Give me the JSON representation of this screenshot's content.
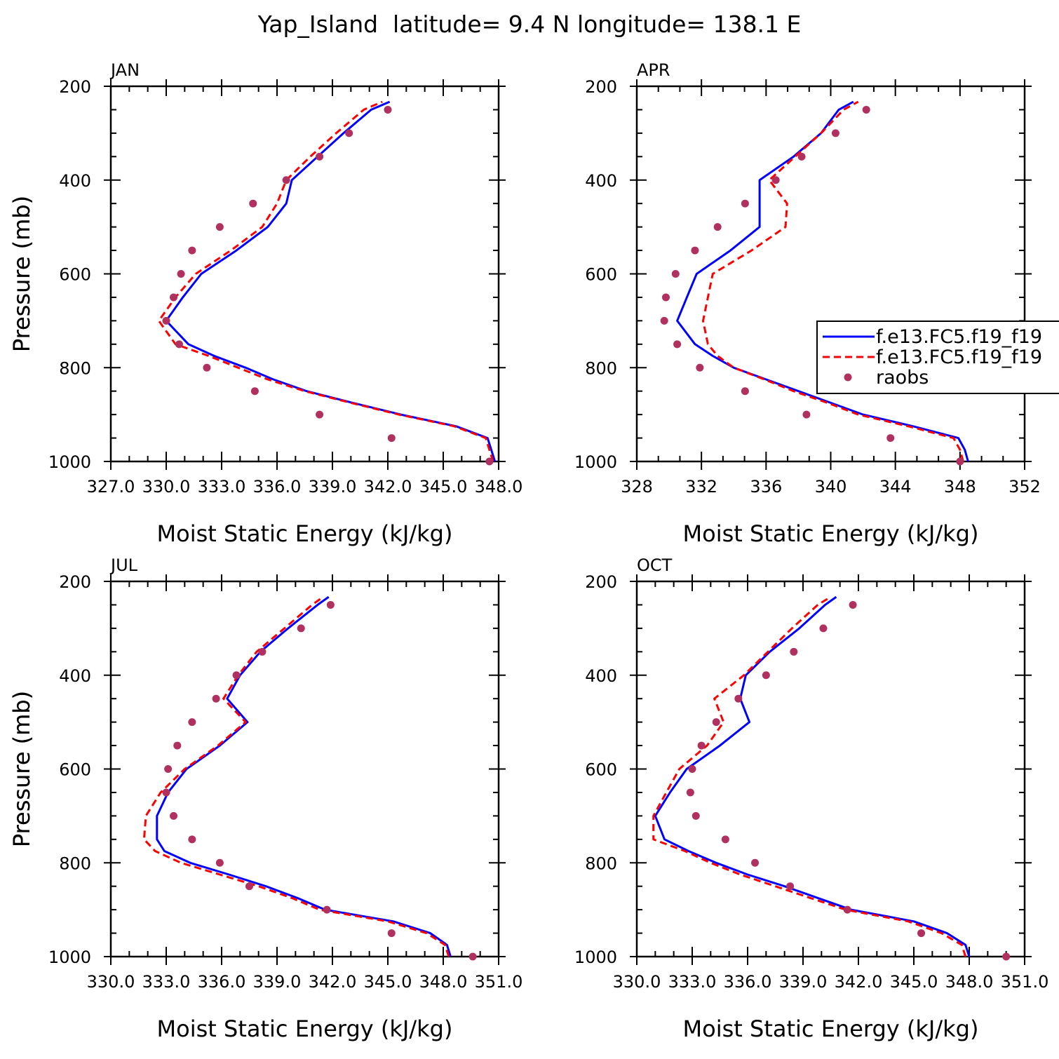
{
  "figure": {
    "title": "Yap_Island  latitude= 9.4 N longitude= 138.1 E",
    "colors": {
      "model1": "#0000ff",
      "model2": "#ff0000",
      "raobs": "#b03060"
    },
    "legend": {
      "entries": [
        {
          "label": "f.e13.FC5.f19_f19",
          "style": "solid-blue-line"
        },
        {
          "label": "f.e13.FC5.f19_f19",
          "style": "dashed-red-line"
        },
        {
          "label": "raobs",
          "style": "purple-dot"
        }
      ]
    }
  },
  "chart_data": [
    {
      "type": "line",
      "panel": "JAN",
      "xlabel": "Moist Static Energy (kJ/kg)",
      "ylabel": "Pressure (mb)",
      "xlim": [
        327.0,
        348.0
      ],
      "xticks": [
        327.0,
        330.0,
        333.0,
        336.0,
        339.0,
        342.0,
        345.0,
        348.0
      ],
      "xtick_labels": [
        "327.0",
        "330.0",
        "333.0",
        "336.0",
        "339.0",
        "342.0",
        "345.0",
        "348.0"
      ],
      "ylim": [
        1000,
        200
      ],
      "yticks": [
        200,
        400,
        600,
        800,
        1000
      ],
      "levels": [
        1000,
        975,
        950,
        925,
        900,
        875,
        850,
        825,
        800,
        775,
        750,
        700,
        650,
        600,
        550,
        500,
        450,
        400,
        350,
        300,
        250,
        233
      ],
      "series": [
        {
          "name": "f.e13.FC5.f19_f19",
          "x": [
            347.8,
            347.6,
            347.4,
            345.7,
            342.7,
            340.1,
            337.6,
            335.8,
            334.3,
            332.6,
            331.2,
            330.0,
            330.9,
            331.9,
            333.8,
            335.5,
            336.5,
            336.8,
            338.2,
            339.6,
            341.1,
            342.1
          ]
        },
        {
          "name": "f.e13.FC5.f19_f19",
          "x": [
            347.7,
            347.5,
            347.3,
            345.6,
            342.6,
            340.0,
            337.5,
            335.5,
            333.9,
            332.3,
            330.5,
            329.6,
            330.5,
            331.6,
            333.5,
            335.2,
            336.0,
            336.5,
            337.8,
            339.2,
            340.7,
            341.7
          ]
        }
      ],
      "raobs": {
        "name": "raobs",
        "p": [
          1000,
          950,
          900,
          850,
          800,
          750,
          700,
          650,
          600,
          550,
          500,
          450,
          400,
          350,
          300,
          250
        ],
        "x": [
          347.5,
          342.2,
          338.3,
          334.8,
          332.2,
          330.7,
          330.0,
          330.4,
          330.8,
          331.4,
          332.9,
          334.7,
          336.5,
          338.3,
          339.9,
          342.0
        ]
      }
    },
    {
      "type": "line",
      "panel": "APR",
      "xlabel": "Moist Static Energy (kJ/kg)",
      "ylabel": "Pressure (mb)",
      "xlim": [
        328,
        352
      ],
      "xticks": [
        328,
        332,
        336,
        340,
        344,
        348,
        352
      ],
      "xtick_labels": [
        "328",
        "332",
        "336",
        "340",
        "344",
        "348",
        "352"
      ],
      "ylim": [
        1000,
        200
      ],
      "yticks": [
        200,
        400,
        600,
        800,
        1000
      ],
      "levels": [
        1000,
        975,
        950,
        925,
        900,
        875,
        850,
        825,
        800,
        775,
        750,
        700,
        650,
        600,
        550,
        500,
        450,
        400,
        350,
        300,
        250,
        233
      ],
      "series": [
        {
          "name": "f.e13.FC5.f19_f19",
          "x": [
            348.5,
            348.3,
            347.9,
            345.1,
            342.0,
            340.0,
            338.0,
            336.0,
            334.0,
            332.7,
            331.6,
            330.5,
            331.1,
            331.7,
            333.8,
            335.6,
            335.6,
            335.6,
            337.7,
            339.4,
            340.5,
            341.4
          ]
        },
        {
          "name": "f.e13.FC5.f19_f19",
          "x": [
            348.2,
            348.0,
            347.6,
            344.8,
            341.7,
            339.8,
            337.7,
            335.9,
            334.0,
            333.0,
            332.4,
            332.1,
            332.4,
            332.7,
            335.1,
            337.2,
            337.3,
            336.2,
            337.8,
            339.4,
            340.8,
            341.7
          ]
        }
      ],
      "raobs": {
        "name": "raobs",
        "p": [
          1000,
          950,
          900,
          850,
          800,
          750,
          700,
          650,
          600,
          550,
          500,
          450,
          400,
          350,
          300,
          250
        ],
        "x": [
          348.0,
          343.7,
          338.5,
          334.7,
          331.9,
          330.5,
          329.7,
          329.8,
          330.4,
          331.6,
          333.0,
          334.7,
          336.6,
          338.2,
          340.3,
          342.2
        ]
      }
    },
    {
      "type": "line",
      "panel": "JUL",
      "xlabel": "Moist Static Energy (kJ/kg)",
      "ylabel": "Pressure (mb)",
      "xlim": [
        330.0,
        351.0
      ],
      "xticks": [
        330.0,
        333.0,
        336.0,
        339.0,
        342.0,
        345.0,
        348.0,
        351.0
      ],
      "xtick_labels": [
        "330.0",
        "333.0",
        "336.0",
        "339.0",
        "342.0",
        "345.0",
        "348.0",
        "351.0"
      ],
      "ylim": [
        1000,
        200
      ],
      "yticks": [
        200,
        400,
        600,
        800,
        1000
      ],
      "levels": [
        1000,
        975,
        950,
        925,
        900,
        875,
        850,
        825,
        800,
        775,
        750,
        700,
        650,
        600,
        550,
        500,
        450,
        400,
        350,
        300,
        250,
        233
      ],
      "series": [
        {
          "name": "f.e13.FC5.f19_f19",
          "x": [
            348.4,
            348.2,
            347.3,
            345.3,
            341.6,
            340.1,
            338.4,
            336.4,
            334.3,
            332.9,
            332.5,
            332.5,
            333.1,
            334.1,
            335.9,
            337.4,
            336.3,
            337.0,
            338.1,
            339.6,
            341.2,
            341.8
          ]
        },
        {
          "name": "f.e13.FC5.f19_f19",
          "x": [
            348.3,
            348.1,
            347.1,
            345.0,
            341.3,
            339.8,
            338.0,
            335.9,
            333.8,
            332.4,
            331.8,
            331.9,
            332.7,
            334.0,
            335.8,
            337.3,
            336.1,
            336.9,
            337.9,
            339.4,
            340.9,
            341.5
          ]
        }
      ],
      "raobs": {
        "name": "raobs",
        "p": [
          1000,
          950,
          900,
          850,
          800,
          750,
          700,
          650,
          600,
          550,
          500,
          450,
          400,
          350,
          300,
          250
        ],
        "x": [
          349.6,
          345.2,
          341.7,
          337.5,
          335.9,
          334.4,
          333.4,
          333.0,
          333.1,
          333.6,
          334.4,
          335.7,
          336.8,
          338.2,
          340.3,
          341.9
        ]
      }
    },
    {
      "type": "line",
      "panel": "OCT",
      "xlabel": "Moist Static Energy (kJ/kg)",
      "ylabel": "Pressure (mb)",
      "xlim": [
        330.0,
        351.0
      ],
      "xticks": [
        330.0,
        333.0,
        336.0,
        339.0,
        342.0,
        345.0,
        348.0,
        351.0
      ],
      "xtick_labels": [
        "330.0",
        "333.0",
        "336.0",
        "339.0",
        "342.0",
        "345.0",
        "348.0",
        "351.0"
      ],
      "ylim": [
        1000,
        200
      ],
      "yticks": [
        200,
        400,
        600,
        800,
        1000
      ],
      "levels": [
        1000,
        975,
        950,
        925,
        900,
        875,
        850,
        825,
        800,
        775,
        750,
        700,
        650,
        600,
        550,
        500,
        450,
        400,
        350,
        300,
        250,
        233
      ],
      "series": [
        {
          "name": "f.e13.FC5.f19_f19",
          "x": [
            348.0,
            347.8,
            346.8,
            345.0,
            341.6,
            339.8,
            338.0,
            336.0,
            334.3,
            332.8,
            331.5,
            331.0,
            331.8,
            332.7,
            334.5,
            336.1,
            335.6,
            335.9,
            337.2,
            338.8,
            340.2,
            340.8
          ]
        },
        {
          "name": "f.e13.FC5.f19_f19",
          "x": [
            347.8,
            347.6,
            346.5,
            344.7,
            341.3,
            339.4,
            337.5,
            335.6,
            334.0,
            332.6,
            330.9,
            330.9,
            331.6,
            332.3,
            333.8,
            334.7,
            334.2,
            335.8,
            337.1,
            338.4,
            339.8,
            340.5
          ]
        }
      ],
      "raobs": {
        "name": "raobs",
        "p": [
          1000,
          950,
          900,
          850,
          800,
          750,
          700,
          650,
          600,
          550,
          500,
          450,
          400,
          350,
          300,
          250
        ],
        "x": [
          350.0,
          345.4,
          341.4,
          338.3,
          336.4,
          334.8,
          333.2,
          332.9,
          333.0,
          333.5,
          334.3,
          335.5,
          337.0,
          338.5,
          340.1,
          341.7
        ]
      }
    }
  ]
}
